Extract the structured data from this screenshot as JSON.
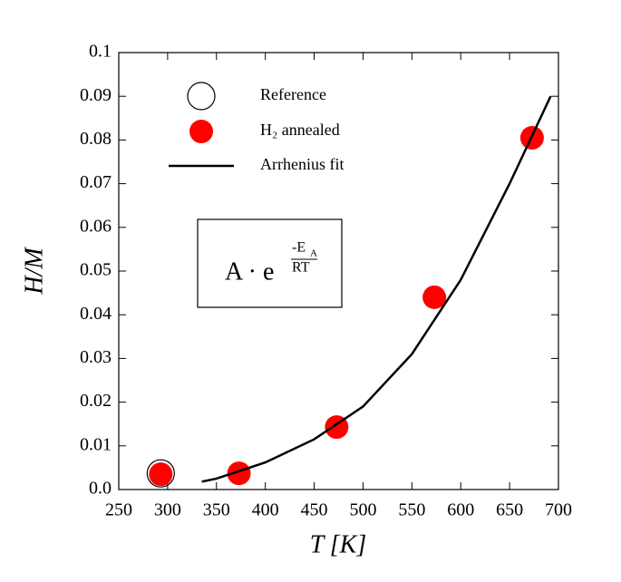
{
  "chart_data": {
    "type": "scatter",
    "x_label": "T [K]",
    "y_label": "H/M",
    "xlim": [
      250,
      700
    ],
    "xticks": [
      250,
      300,
      350,
      400,
      450,
      500,
      550,
      600,
      650,
      700
    ],
    "ylim": [
      0,
      0.1
    ],
    "yticks": [
      {
        "value": 0,
        "label": "0.0"
      },
      0.01,
      0.02,
      0.03,
      0.04,
      0.05,
      0.06,
      0.07,
      0.08,
      0.09,
      0.1
    ],
    "series": [
      {
        "name": "H₂ annealed",
        "color": "#ff0000",
        "marker": "filled",
        "x": [
          293,
          373,
          473,
          573,
          673
        ],
        "values": [
          0.0035,
          0.0037,
          0.0143,
          0.044,
          0.0805
        ]
      },
      {
        "name": "Reference",
        "color": "#000000",
        "marker": "open",
        "x": [
          293
        ],
        "values": [
          0.0037
        ]
      },
      {
        "name": "Arrhenius fit",
        "color": "#000000",
        "marker": "line",
        "x": [
          335,
          350,
          400,
          450,
          500,
          550,
          600,
          650,
          692
        ],
        "values": [
          0.0018,
          0.0025,
          0.0062,
          0.0115,
          0.019,
          0.031,
          0.048,
          0.07,
          0.09
        ]
      }
    ],
    "annotation": {
      "base": "A · e",
      "exp_num": "-E",
      "exp_num_sub": "A",
      "exp_den": "RT"
    }
  }
}
